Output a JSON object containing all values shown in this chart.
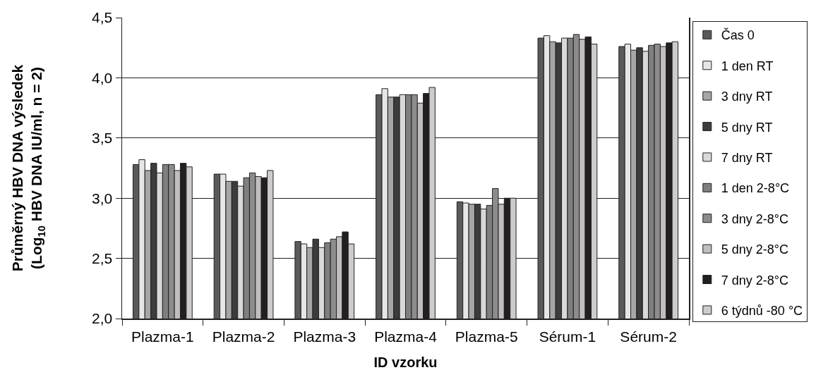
{
  "chart_data": {
    "type": "bar",
    "xlabel": "ID vzorku",
    "ylabel": "Průměrný HBV DNA výsledek\n(Log$_{10}$ HBV DNA IU/ml, n = 2)",
    "categories": [
      "Plazma-1",
      "Plazma-2",
      "Plazma-3",
      "Plazma-4",
      "Plazma-5",
      "Sérum-1",
      "Sérum-2"
    ],
    "series": [
      {
        "name": "Čas 0",
        "color": "#5a5a5a",
        "values": [
          3.28,
          3.2,
          2.64,
          3.86,
          2.97,
          4.33,
          4.26
        ]
      },
      {
        "name": "1 den RT",
        "color": "#e6e6e6",
        "values": [
          3.32,
          3.2,
          2.62,
          3.91,
          2.96,
          4.35,
          4.28
        ]
      },
      {
        "name": "3 dny RT",
        "color": "#a6a6a6",
        "values": [
          3.23,
          3.14,
          2.59,
          3.84,
          2.95,
          4.3,
          4.23
        ]
      },
      {
        "name": "5 dny RT",
        "color": "#3c3c3c",
        "values": [
          3.29,
          3.14,
          2.66,
          3.84,
          2.95,
          4.29,
          4.25
        ]
      },
      {
        "name": "7 dny RT",
        "color": "#d9d9d9",
        "values": [
          3.21,
          3.1,
          2.59,
          3.86,
          2.91,
          4.33,
          4.22
        ]
      },
      {
        "name": "1 den 2-8°C",
        "color": "#7f7f7f",
        "values": [
          3.28,
          3.17,
          2.63,
          3.86,
          2.94,
          4.33,
          4.27
        ]
      },
      {
        "name": "3 dny 2-8°C",
        "color": "#8c8c8c",
        "values": [
          3.28,
          3.21,
          2.66,
          3.86,
          3.08,
          4.36,
          4.28
        ]
      },
      {
        "name": "5 dny 2-8°C",
        "color": "#bfbfbf",
        "values": [
          3.23,
          3.18,
          2.68,
          3.79,
          2.95,
          4.32,
          4.26
        ]
      },
      {
        "name": "7 dny 2-8°C",
        "color": "#231f20",
        "values": [
          3.29,
          3.17,
          2.72,
          3.87,
          3.0,
          4.34,
          4.29
        ]
      },
      {
        "name": "6 týdnů -80 °C",
        "color": "#cccccc",
        "values": [
          3.26,
          3.23,
          2.62,
          3.92,
          3.0,
          4.28,
          4.3
        ]
      }
    ],
    "ylim": [
      2.0,
      4.5
    ],
    "yticks": [
      {
        "value": 2.0,
        "label": "2,0"
      },
      {
        "value": 2.5,
        "label": "2,5"
      },
      {
        "value": 3.0,
        "label": "3,0"
      },
      {
        "value": 3.5,
        "label": "3,5"
      },
      {
        "value": 4.0,
        "label": "4,0"
      },
      {
        "value": 4.5,
        "label": "4,5"
      }
    ],
    "grid": "y",
    "legend": "right"
  }
}
